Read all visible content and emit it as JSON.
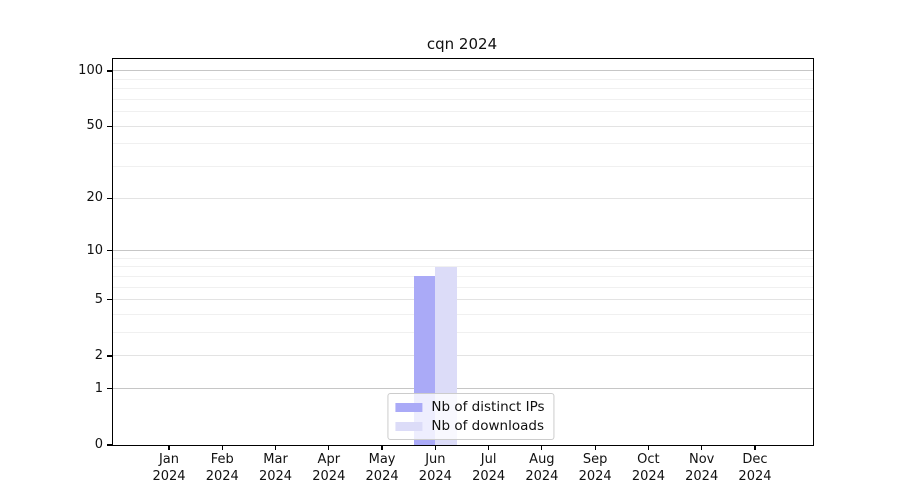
{
  "title": "cqn 2024",
  "chart_data": {
    "type": "bar",
    "title": "cqn 2024",
    "categories": [
      "Jan",
      "Feb",
      "Mar",
      "Apr",
      "May",
      "Jun",
      "Jul",
      "Aug",
      "Sep",
      "Oct",
      "Nov",
      "Dec"
    ],
    "category_subline": "2024",
    "series": [
      {
        "name": "Nb of distinct IPs",
        "color": "#aaaaf7",
        "values": [
          0,
          0,
          0,
          0,
          0,
          7,
          0,
          0,
          0,
          0,
          0,
          0
        ]
      },
      {
        "name": "Nb of downloads",
        "color": "#dcdcf8",
        "values": [
          0,
          0,
          0,
          0,
          0,
          8,
          0,
          0,
          0,
          0,
          0,
          0
        ]
      }
    ],
    "xlabel": "",
    "ylabel": "",
    "y_axis": {
      "scale": "log10(value+1)",
      "tick_labels": [
        "0",
        "1",
        "2",
        "5",
        "10",
        "20",
        "50",
        "100"
      ],
      "tick_values": [
        0,
        1,
        2,
        5,
        10,
        20,
        50,
        100
      ],
      "decade_values": [
        1,
        10,
        100
      ],
      "minor_values": [
        3,
        4,
        6,
        7,
        8,
        9,
        30,
        40,
        60,
        70,
        80,
        90
      ],
      "top_value": 116
    },
    "grid": true,
    "legend_position": "lower center"
  },
  "colors": {
    "axis": "#000000",
    "grid_decade": "#c6c6c6",
    "grid_submajor": "#e3e3e3",
    "grid_minor": "#f0f0f0",
    "background": "#ffffff"
  }
}
